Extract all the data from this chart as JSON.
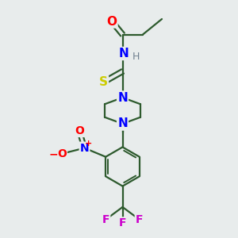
{
  "background_color": "#e8ecec",
  "bond_color": "#2d5a2d",
  "atom_colors": {
    "O": "#ff0000",
    "N": "#0000ff",
    "S": "#cccc00",
    "F": "#cc00cc",
    "H": "#708090",
    "C": "#2d5a2d"
  },
  "figsize": [
    3.0,
    3.0
  ],
  "dpi": 100,
  "bg": "#e8ecec"
}
